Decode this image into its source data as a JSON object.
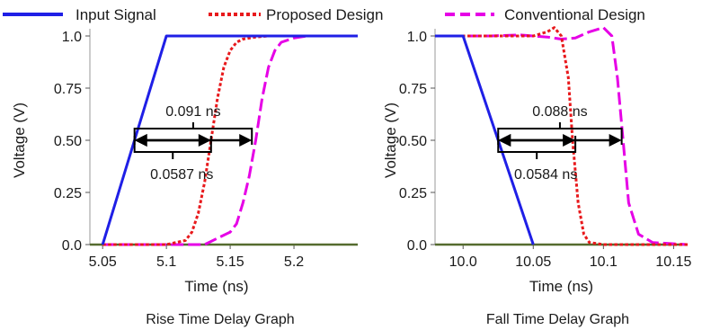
{
  "legend": {
    "items": [
      {
        "label": "Input Signal",
        "color": "#1f1fe6",
        "dash": "solid"
      },
      {
        "label": "Proposed Design",
        "color": "#e8191c",
        "dash": "dotted"
      },
      {
        "label": "Conventional Design",
        "color": "#e600e6",
        "dash": "dashed"
      }
    ]
  },
  "chart_data": [
    {
      "type": "line",
      "caption": "Rise Time Delay Graph",
      "xlabel": "Time (ns)",
      "ylabel": "Voltage (V)",
      "xlim": [
        5.04,
        5.25
      ],
      "ylim": [
        0.0,
        1.0
      ],
      "xticks": [
        5.05,
        5.1,
        5.15,
        5.2
      ],
      "xtick_labels": [
        "5.05",
        "5.1",
        "5.15",
        "5.2"
      ],
      "yticks": [
        0.0,
        0.25,
        0.5,
        0.75,
        1.0
      ],
      "ytick_labels": [
        "0.0",
        "0.25",
        "0.50",
        "0.75",
        "1.0"
      ],
      "baseline": {
        "y": 0.0,
        "color": "#556b2f"
      },
      "series": [
        {
          "name": "Input Signal",
          "color": "#1f1fe6",
          "dash": "solid",
          "x": [
            5.05,
            5.1,
            5.25
          ],
          "y": [
            0.0,
            1.0,
            1.0
          ]
        },
        {
          "name": "Proposed Design",
          "color": "#e8191c",
          "dash": "dotted",
          "x": [
            5.05,
            5.1,
            5.115,
            5.12,
            5.125,
            5.13,
            5.135,
            5.14,
            5.145,
            5.15,
            5.155,
            5.16,
            5.17,
            5.18,
            5.25
          ],
          "y": [
            0.0,
            0.0,
            0.02,
            0.06,
            0.15,
            0.3,
            0.5,
            0.7,
            0.85,
            0.93,
            0.97,
            0.985,
            0.995,
            1.0,
            1.0
          ]
        },
        {
          "name": "Conventional Design",
          "color": "#e600e6",
          "dash": "dashed",
          "x": [
            5.05,
            5.13,
            5.14,
            5.15,
            5.155,
            5.16,
            5.165,
            5.17,
            5.175,
            5.18,
            5.185,
            5.19,
            5.2,
            5.21,
            5.25
          ],
          "y": [
            0.0,
            0.0,
            0.03,
            0.06,
            0.1,
            0.2,
            0.33,
            0.5,
            0.7,
            0.85,
            0.93,
            0.97,
            0.99,
            1.0,
            1.0
          ]
        }
      ],
      "annotations": [
        {
          "text": "0.091 ns",
          "x_start": 5.075,
          "x_end": 5.167,
          "y": 0.5,
          "label_side": "above"
        },
        {
          "text": "0.0587 ns",
          "x_start": 5.075,
          "x_end": 5.135,
          "y": 0.5,
          "label_side": "below"
        }
      ]
    },
    {
      "type": "line",
      "caption": "Fall Time Delay Graph",
      "xlabel": "Time (ns)",
      "ylabel": "Voltage (V)",
      "xlim": [
        9.98,
        10.16
      ],
      "ylim": [
        0.0,
        1.0
      ],
      "xticks": [
        10.0,
        10.05,
        10.1,
        10.15
      ],
      "xtick_labels": [
        "10.0",
        "10.05",
        "10.1",
        "10.15"
      ],
      "yticks": [
        0.0,
        0.25,
        0.5,
        0.75,
        1.0
      ],
      "ytick_labels": [
        "0.0",
        "0.25",
        "0.50",
        "0.75",
        "1.0"
      ],
      "baseline": {
        "y": 0.0,
        "color": "#556b2f"
      },
      "series": [
        {
          "name": "Input Signal",
          "color": "#1f1fe6",
          "dash": "solid",
          "x": [
            9.98,
            10.0,
            10.05
          ],
          "y": [
            1.0,
            1.0,
            0.0
          ]
        },
        {
          "name": "Proposed Design",
          "color": "#e8191c",
          "dash": "dotted",
          "x": [
            9.98,
            10.02,
            10.04,
            10.05,
            10.06,
            10.065,
            10.07,
            10.075,
            10.078,
            10.082,
            10.086,
            10.09,
            10.1,
            10.16
          ],
          "y": [
            1.0,
            1.0,
            1.0,
            1.0,
            1.02,
            1.04,
            1.0,
            0.8,
            0.5,
            0.2,
            0.05,
            0.01,
            0.0,
            0.0
          ]
        },
        {
          "name": "Conventional Design",
          "color": "#e600e6",
          "dash": "dashed",
          "x": [
            9.98,
            10.0,
            10.02,
            10.04,
            10.06,
            10.07,
            10.08,
            10.09,
            10.1,
            10.106,
            10.11,
            10.114,
            10.118,
            10.125,
            10.135,
            10.16
          ],
          "y": [
            1.0,
            1.0,
            1.0,
            1.005,
            0.995,
            0.985,
            0.99,
            1.02,
            1.04,
            1.0,
            0.8,
            0.5,
            0.2,
            0.05,
            0.01,
            0.0
          ]
        }
      ],
      "annotations": [
        {
          "text": "0.088 ns",
          "x_start": 10.025,
          "x_end": 10.113,
          "y": 0.5,
          "label_side": "above"
        },
        {
          "text": "0.0584 ns",
          "x_start": 10.025,
          "x_end": 10.08,
          "y": 0.5,
          "label_side": "below"
        }
      ]
    }
  ]
}
